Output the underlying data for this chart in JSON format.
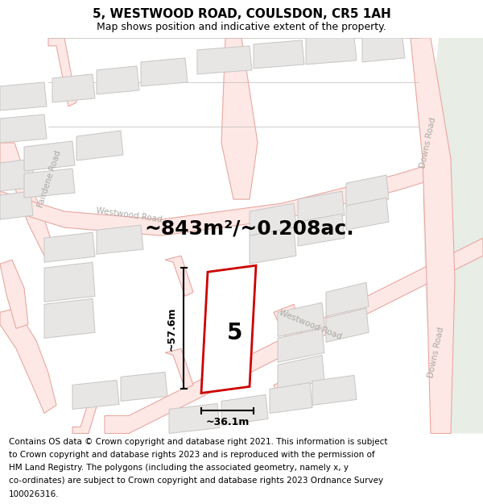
{
  "title": "5, WESTWOOD ROAD, COULSDON, CR5 1AH",
  "subtitle": "Map shows position and indicative extent of the property.",
  "area_text": "~843m²/~0.208ac.",
  "dim_height": "~57.6m",
  "dim_width": "~36.1m",
  "property_number": "5",
  "footer_lines": [
    "Contains OS data © Crown copyright and database right 2021. This information is subject",
    "to Crown copyright and database rights 2023 and is reproduced with the permission of",
    "HM Land Registry. The polygons (including the associated geometry, namely x, y",
    "co-ordinates) are subject to Crown copyright and database rights 2023 Ordnance Survey",
    "100026316."
  ],
  "map_bg": "#f7f6f4",
  "road_fill": "#fde8e6",
  "road_line": "#e8a8a0",
  "road_line_thin": "#e0b0a8",
  "building_fill": "#e8e6e4",
  "building_edge": "#c8c6c4",
  "property_fill": "#ffffff",
  "property_edge": "#cc0000",
  "green_fill": "#e8ede6",
  "gray_road_line": "#c0bcb8",
  "title_fontsize": 11,
  "subtitle_fontsize": 9,
  "area_fontsize": 18,
  "footer_fontsize": 7.5,
  "road_label_color": "#aaa8a4",
  "road_label_fontsize": 7.5
}
